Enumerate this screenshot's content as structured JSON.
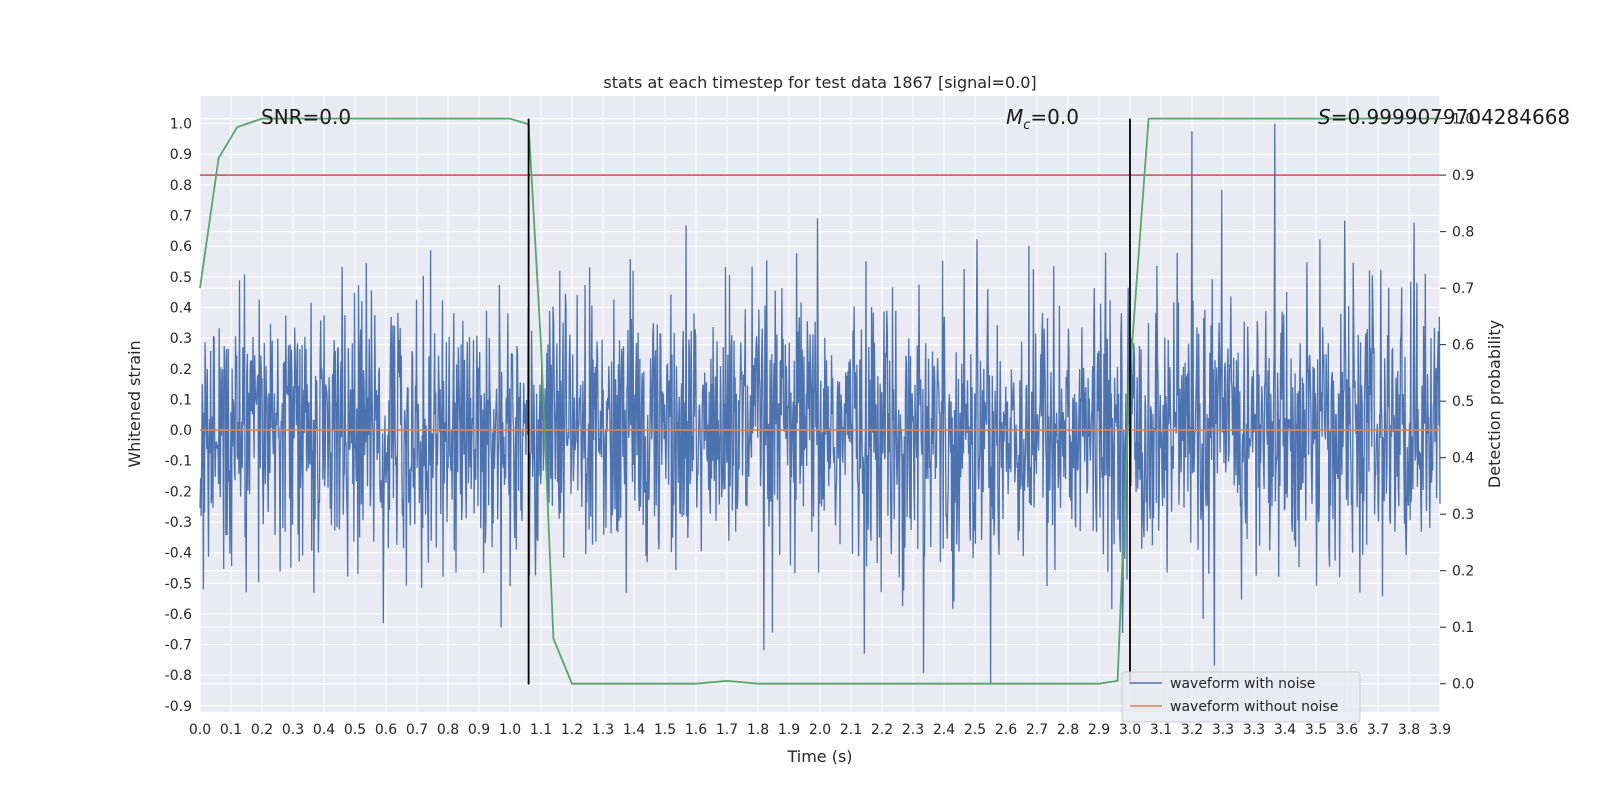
{
  "chart_data": {
    "type": "line",
    "title": "stats at each timestep for test data 1867 [signal=0.0]",
    "xlabel": "Time (s)",
    "ylabel": "Whitened strain",
    "ylabel_right": "Detection probability",
    "xlim": [
      0.0,
      4.0
    ],
    "ylim": [
      -0.92,
      1.09
    ],
    "ylim_right": [
      -0.05,
      1.04
    ],
    "x_ticks": [
      "0.0",
      "0.1",
      "0.2",
      "0.3",
      "0.4",
      "0.5",
      "0.6",
      "0.7",
      "0.8",
      "0.9",
      "1.0",
      "1.1",
      "1.2",
      "1.3",
      "1.4",
      "1.5",
      "1.6",
      "1.7",
      "1.8",
      "1.9",
      "2.0",
      "2.1",
      "2.2",
      "2.3",
      "2.4",
      "2.5",
      "2.6",
      "2.7",
      "2.8",
      "2.9",
      "3.0",
      "3.1",
      "3.2",
      "3.3",
      "3.3",
      "3.4",
      "3.5",
      "3.6",
      "3.7",
      "3.8",
      "3.9"
    ],
    "y_ticks": [
      "1.0",
      "0.9",
      "0.8",
      "0.7",
      "0.6",
      "0.5",
      "0.4",
      "0.3",
      "0.2",
      "0.1",
      "0.0",
      "-0.1",
      "-0.2",
      "-0.3",
      "-0.4",
      "-0.5",
      "-0.6",
      "-0.7",
      "-0.8",
      "-0.9"
    ],
    "y_ticks_right": [
      "1.0",
      "0.9",
      "0.8",
      "0.7",
      "0.6",
      "0.5",
      "0.4",
      "0.3",
      "0.2",
      "0.1",
      "0.0"
    ],
    "grid": true,
    "legend_position": "bottom-right",
    "series": [
      {
        "name": "waveform with noise",
        "color": "#4c72b0",
        "kind": "noise",
        "approx_range": [
          -0.83,
          1.0
        ]
      },
      {
        "name": "waveform without noise",
        "color": "#dd8452",
        "x": [
          0.0,
          4.0
        ],
        "y": [
          0.0,
          0.0
        ]
      },
      {
        "color": "#55a868",
        "axis": "right",
        "x": [
          0.0,
          0.06,
          0.12,
          0.2,
          0.3,
          0.6,
          1.0,
          1.06,
          1.1,
          1.14,
          1.2,
          1.3,
          1.6,
          1.7,
          1.8,
          2.0,
          2.5,
          2.9,
          2.96,
          3.0,
          3.06,
          3.2,
          4.0
        ],
        "y": [
          0.7,
          0.93,
          0.985,
          1.0,
          1.0,
          1.0,
          1.0,
          0.99,
          0.6,
          0.08,
          0.0,
          0.0,
          0.0,
          0.005,
          0.0,
          0.0,
          0.0,
          0.0,
          0.005,
          0.55,
          1.0,
          1.0,
          1.0
        ]
      }
    ],
    "hlines": [
      {
        "y_right": 0.9,
        "color": "#c44e52"
      }
    ],
    "vlines": [
      {
        "x": 1.06,
        "color": "#000000"
      },
      {
        "x": 3.0,
        "color": "#000000"
      }
    ],
    "annotations": [
      {
        "id": "snr",
        "text": "SNR=0.0"
      },
      {
        "id": "mc",
        "text": "=0.0",
        "prefix_main": "M",
        "prefix_sub": "c"
      },
      {
        "id": "s",
        "text": "=0.9999079704284668",
        "prefix_main": "S"
      }
    ]
  }
}
